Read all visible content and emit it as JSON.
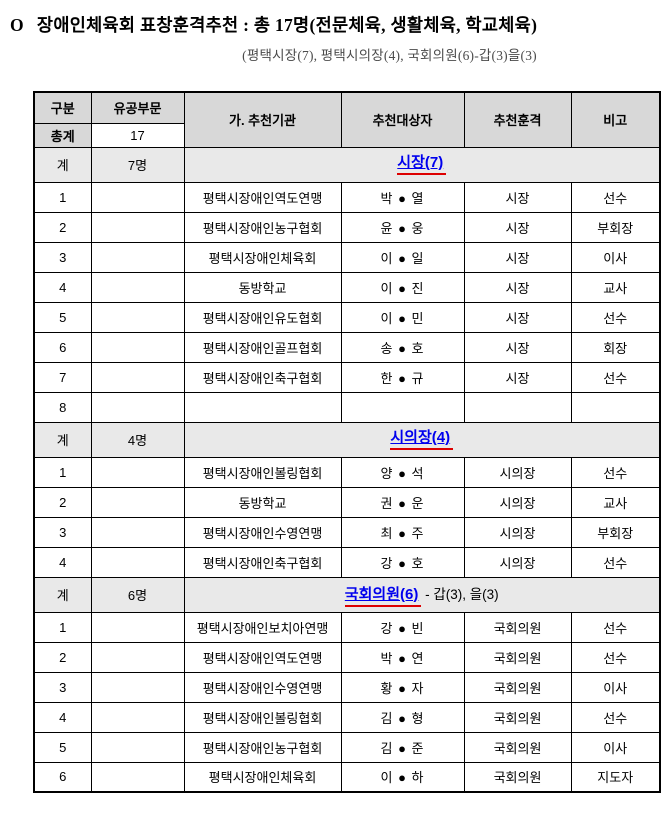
{
  "title": {
    "marker": "O",
    "text": "장애인체육회 표창훈격추천 : 총 17명(전문체육, 생활체육, 학교체육)"
  },
  "subtitle": "(평택시장(7), 평택시의장(4), 국회의원(6)-갑(3)을(3)",
  "colors": {
    "section_link_blue": "#0000ee",
    "annotation_red": "#dd0000",
    "header_gray": "#d8d8d8",
    "section_row_gray": "#e9e9e9"
  },
  "table": {
    "headers": [
      "구분",
      "유공부문",
      "가. 추천기관",
      "추천대상자",
      "추천훈격",
      "비고"
    ],
    "total_row": {
      "label": "총계",
      "value": "17"
    },
    "section_count_label": "계",
    "sections": [
      {
        "count": "7명",
        "title": "시장(7)",
        "title_suffix": "",
        "rows": [
          {
            "no": "1",
            "org": "평택시장애인역도연맹",
            "name": "박 ● 열",
            "grade": "시장",
            "note": "선수"
          },
          {
            "no": "2",
            "org": "평택시장애인농구협회",
            "name": "윤 ● 웅",
            "grade": "시장",
            "note": "부회장"
          },
          {
            "no": "3",
            "org": "평택시장애인체육회",
            "name": "이 ● 일",
            "grade": "시장",
            "note": "이사"
          },
          {
            "no": "4",
            "org": "동방학교",
            "name": "이 ● 진",
            "grade": "시장",
            "note": "교사"
          },
          {
            "no": "5",
            "org": "평택시장애인유도협회",
            "name": "이 ● 민",
            "grade": "시장",
            "note": "선수"
          },
          {
            "no": "6",
            "org": "평택시장애인골프협회",
            "name": "송 ● 호",
            "grade": "시장",
            "note": "회장"
          },
          {
            "no": "7",
            "org": "평택시장애인축구협회",
            "name": "한 ● 규",
            "grade": "시장",
            "note": "선수"
          },
          {
            "no": "8",
            "org": "",
            "name": "",
            "grade": "",
            "note": ""
          }
        ]
      },
      {
        "count": "4명",
        "title": "시의장(4)",
        "title_suffix": "",
        "rows": [
          {
            "no": "1",
            "org": "평택시장애인볼링협회",
            "name": "양 ● 석",
            "grade": "시의장",
            "note": "선수"
          },
          {
            "no": "2",
            "org": "동방학교",
            "name": "권 ● 운",
            "grade": "시의장",
            "note": "교사"
          },
          {
            "no": "3",
            "org": "평택시장애인수영연맹",
            "name": "최 ● 주",
            "grade": "시의장",
            "note": "부회장"
          },
          {
            "no": "4",
            "org": "평택시장애인축구협회",
            "name": "강 ● 호",
            "grade": "시의장",
            "note": "선수"
          }
        ]
      },
      {
        "count": "6명",
        "title": "국회의원(6)",
        "title_suffix": " - 갑(3),  을(3)",
        "rows": [
          {
            "no": "1",
            "org": "평택시장애인보치아연맹",
            "name": "강 ● 빈",
            "grade": "국회의원",
            "note": "선수"
          },
          {
            "no": "2",
            "org": "평택시장애인역도연맹",
            "name": "박 ● 연",
            "grade": "국회의원",
            "note": "선수"
          },
          {
            "no": "3",
            "org": "평택시장애인수영연맹",
            "name": "황 ● 자",
            "grade": "국회의원",
            "note": "이사"
          },
          {
            "no": "4",
            "org": "평택시장애인볼링협회",
            "name": "김 ● 형",
            "grade": "국회의원",
            "note": "선수"
          },
          {
            "no": "5",
            "org": "평택시장애인농구협회",
            "name": "김 ● 준",
            "grade": "국회의원",
            "note": "이사"
          },
          {
            "no": "6",
            "org": "평택시장애인체육회",
            "name": "이 ● 하",
            "grade": "국회의원",
            "note": "지도자"
          }
        ]
      }
    ]
  }
}
